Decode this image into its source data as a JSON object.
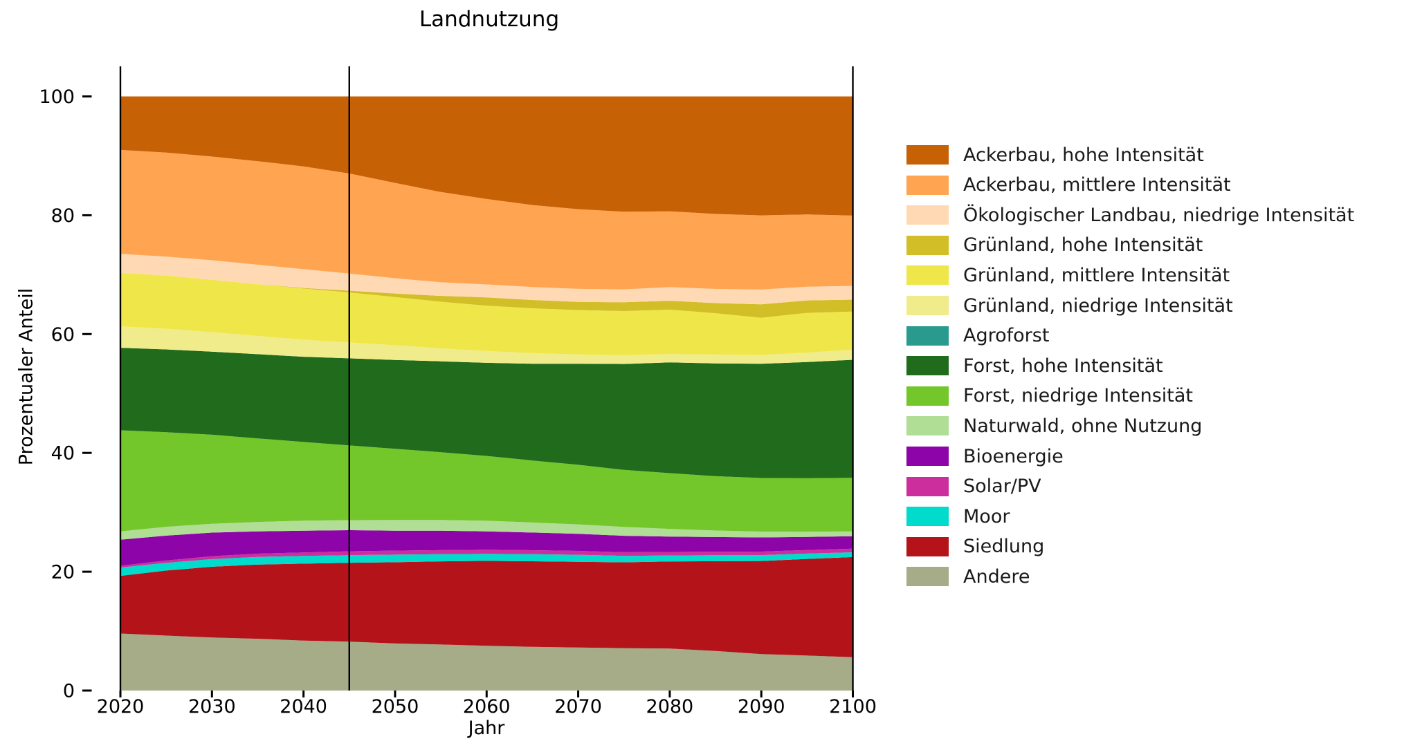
{
  "title": "Landnutzung",
  "axes": {
    "xlabel": "Jahr",
    "ylabel": "Prozentualer Anteil",
    "x_ticks": [
      2020,
      2030,
      2040,
      2050,
      2060,
      2070,
      2080,
      2090,
      2100
    ],
    "y_ticks": [
      0,
      20,
      40,
      60,
      80,
      100
    ],
    "xlim": [
      2017,
      2103
    ],
    "ylim": [
      0,
      105
    ],
    "grid": false,
    "legend_position": "right"
  },
  "annotations": {
    "vlines_years": [
      2020,
      2045,
      2100
    ],
    "vline_color": "#000000"
  },
  "chart_data": {
    "type": "area",
    "stacked": true,
    "unit": "percent",
    "title": "Landnutzung",
    "xlabel": "Jahr",
    "ylabel": "Prozentualer Anteil",
    "x": [
      2020,
      2025,
      2030,
      2035,
      2040,
      2045,
      2050,
      2055,
      2060,
      2065,
      2070,
      2075,
      2080,
      2085,
      2090,
      2095,
      2100
    ],
    "series": [
      {
        "name": "Ackerbau, hohe Intensität",
        "color": "#C76106",
        "values": [
          9.0,
          9.5,
          10.2,
          11.0,
          11.9,
          13.1,
          14.7,
          16.2,
          17.4,
          18.4,
          19.1,
          19.6,
          19.4,
          19.9,
          20.2,
          19.9,
          20.0
        ]
      },
      {
        "name": "Ackerbau, mittlere Intensität",
        "color": "#FFA552",
        "values": [
          17.5,
          17.6,
          17.6,
          17.6,
          17.5,
          17.0,
          16.2,
          15.3,
          14.5,
          13.9,
          13.5,
          13.2,
          12.8,
          12.7,
          12.6,
          12.2,
          11.8
        ]
      },
      {
        "name": "Ökologischer Landbau, niedrige Intensität",
        "color": "#FFD9B3",
        "values": [
          3.2,
          3.2,
          3.3,
          3.3,
          3.2,
          2.9,
          2.6,
          2.3,
          2.2,
          2.2,
          2.2,
          2.2,
          2.3,
          2.4,
          2.5,
          2.3,
          2.3
        ]
      },
      {
        "name": "Grünland, hohe Intensität",
        "color": "#D2BE26",
        "values": [
          0,
          0,
          0,
          0,
          0.1,
          0.3,
          0.6,
          1.0,
          1.4,
          1.4,
          1.4,
          1.5,
          1.5,
          1.7,
          2.3,
          2.1,
          2.0
        ]
      },
      {
        "name": "Grünland, mittlere Intensität",
        "color": "#EFE74A",
        "values": [
          9.0,
          9.0,
          8.9,
          8.8,
          8.7,
          8.5,
          8.2,
          7.9,
          7.7,
          7.6,
          7.5,
          7.5,
          7.5,
          7.0,
          6.3,
          6.7,
          6.4
        ]
      },
      {
        "name": "Grünland, niedrige Intensität",
        "color": "#F0EC8B",
        "values": [
          3.6,
          3.5,
          3.3,
          3.1,
          2.9,
          2.7,
          2.5,
          2.2,
          2.0,
          1.8,
          1.6,
          1.5,
          1.4,
          1.5,
          1.5,
          1.6,
          1.7
        ]
      },
      {
        "name": "Agroforst",
        "color": "#2A9A8F",
        "values": [
          0,
          0,
          0,
          0,
          0,
          0,
          0,
          0,
          0,
          0,
          0,
          0,
          0,
          0,
          0,
          0,
          0
        ]
      },
      {
        "name": "Forst, hohe Intensität",
        "color": "#216B1D",
        "values": [
          13.9,
          14.0,
          14.1,
          14.3,
          14.5,
          14.8,
          15.1,
          15.4,
          15.8,
          16.4,
          17.1,
          18.0,
          18.7,
          19.1,
          19.4,
          19.6,
          19.8
        ]
      },
      {
        "name": "Forst, niedrige Intensität",
        "color": "#74C72A",
        "values": [
          17.0,
          16.0,
          15.1,
          14.2,
          13.4,
          12.7,
          12.1,
          11.5,
          11.0,
          10.5,
          10.1,
          9.7,
          9.4,
          9.2,
          9.1,
          9.0,
          9.0
        ]
      },
      {
        "name": "Naturwald, ohne Nutzung",
        "color": "#AFDE94",
        "values": [
          1.4,
          1.5,
          1.5,
          1.6,
          1.7,
          1.7,
          1.8,
          1.8,
          1.8,
          1.7,
          1.6,
          1.5,
          1.3,
          1.1,
          1.0,
          0.9,
          0.8
        ]
      },
      {
        "name": "Bioenergie",
        "color": "#8D05A8",
        "values": [
          4.4,
          4.2,
          4.0,
          3.8,
          3.7,
          3.6,
          3.4,
          3.3,
          3.1,
          3.0,
          2.9,
          2.8,
          2.6,
          2.5,
          2.4,
          2.2,
          2.1
        ]
      },
      {
        "name": "Solar/PV",
        "color": "#CC2F9D",
        "values": [
          0.3,
          0.4,
          0.5,
          0.55,
          0.6,
          0.65,
          0.68,
          0.7,
          0.7,
          0.68,
          0.65,
          0.62,
          0.6,
          0.6,
          0.6,
          0.6,
          0.6
        ]
      },
      {
        "name": "Moor",
        "color": "#00DBCB",
        "values": [
          1.4,
          1.3,
          1.3,
          1.3,
          1.3,
          1.3,
          1.3,
          1.2,
          1.2,
          1.2,
          1.2,
          1.1,
          1.0,
          1.0,
          1.0,
          0.9,
          0.8
        ]
      },
      {
        "name": "Siedlung",
        "color": "#B5131A",
        "values": [
          9.7,
          11.0,
          12.0,
          12.6,
          13.1,
          13.4,
          13.8,
          14.1,
          14.4,
          14.5,
          14.5,
          14.6,
          14.7,
          15.2,
          15.8,
          16.3,
          16.8
        ]
      },
      {
        "name": "Andere",
        "color": "#A5AC87",
        "values": [
          9.6,
          9.3,
          9.0,
          8.8,
          8.5,
          8.3,
          8.0,
          7.8,
          7.6,
          7.4,
          7.3,
          7.2,
          7.1,
          6.7,
          6.2,
          5.9,
          5.6
        ]
      }
    ]
  }
}
